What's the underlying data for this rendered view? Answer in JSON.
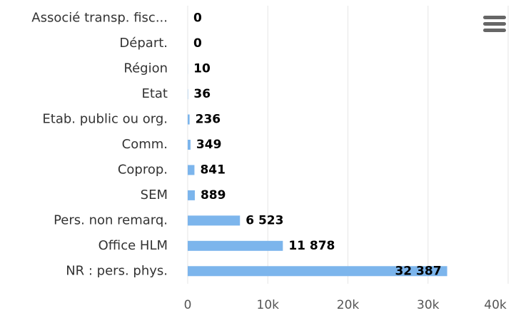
{
  "chart_data": {
    "type": "bar",
    "orientation": "horizontal",
    "categories": [
      "Associé transp. fisc...",
      "Départ.",
      "Région",
      "Etat",
      "Etab. public ou org.",
      "Comm.",
      "Coprop.",
      "SEM",
      "Pers. non remarq.",
      "Office HLM",
      "NR : pers. phys."
    ],
    "values": [
      0,
      0,
      10,
      36,
      236,
      349,
      841,
      889,
      6523,
      11878,
      32387
    ],
    "value_labels": [
      "0",
      "0",
      "10",
      "36",
      "236",
      "349",
      "841",
      "889",
      "6 523",
      "11 878",
      "32 387"
    ],
    "color": "#7cb5ec",
    "xlim": [
      0,
      40000
    ],
    "xticks": [
      0,
      {
        "value": 10000,
        "label": "10k"
      },
      {
        "value": 20000,
        "label": "20k"
      },
      {
        "value": 30000,
        "label": "30k"
      },
      {
        "value": 40000,
        "label": "40k"
      }
    ],
    "grid": true
  }
}
